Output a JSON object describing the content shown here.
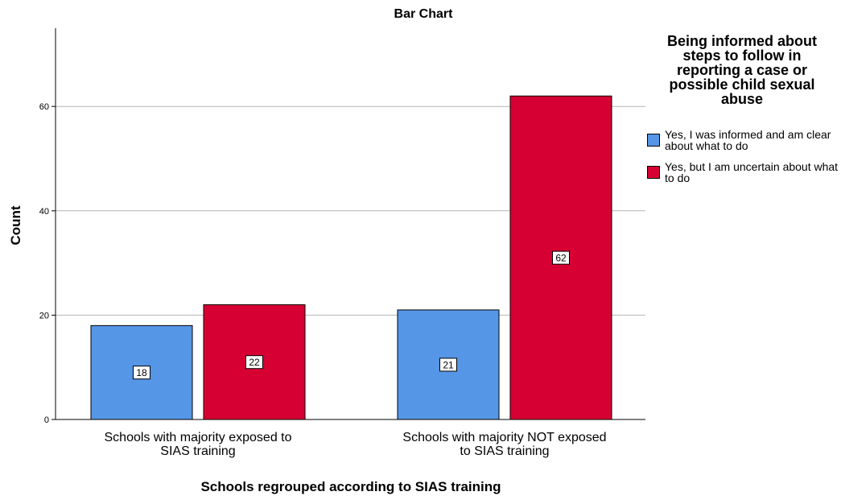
{
  "chart_data": {
    "type": "bar",
    "title": "Bar Chart",
    "xlabel": "Schools regrouped according to SIAS training",
    "ylabel": "Count",
    "categories": [
      "Schools with majority exposed to SIAS training",
      "Schools with majority NOT exposed to SIAS training"
    ],
    "series": [
      {
        "name": "Yes, I was informed and am clear about what to do",
        "values": [
          18,
          21
        ],
        "color": "#5596e6"
      },
      {
        "name": "Yes, but I am uncertain about what to do",
        "values": [
          22,
          62
        ],
        "color": "#d70032"
      }
    ],
    "ylim": [
      0,
      75
    ],
    "yticks": [
      0,
      20,
      40,
      60
    ],
    "grid": true,
    "legend": {
      "title": "Being informed about steps to follow in reporting a case or possible child sexual abuse",
      "placement": "right"
    }
  }
}
